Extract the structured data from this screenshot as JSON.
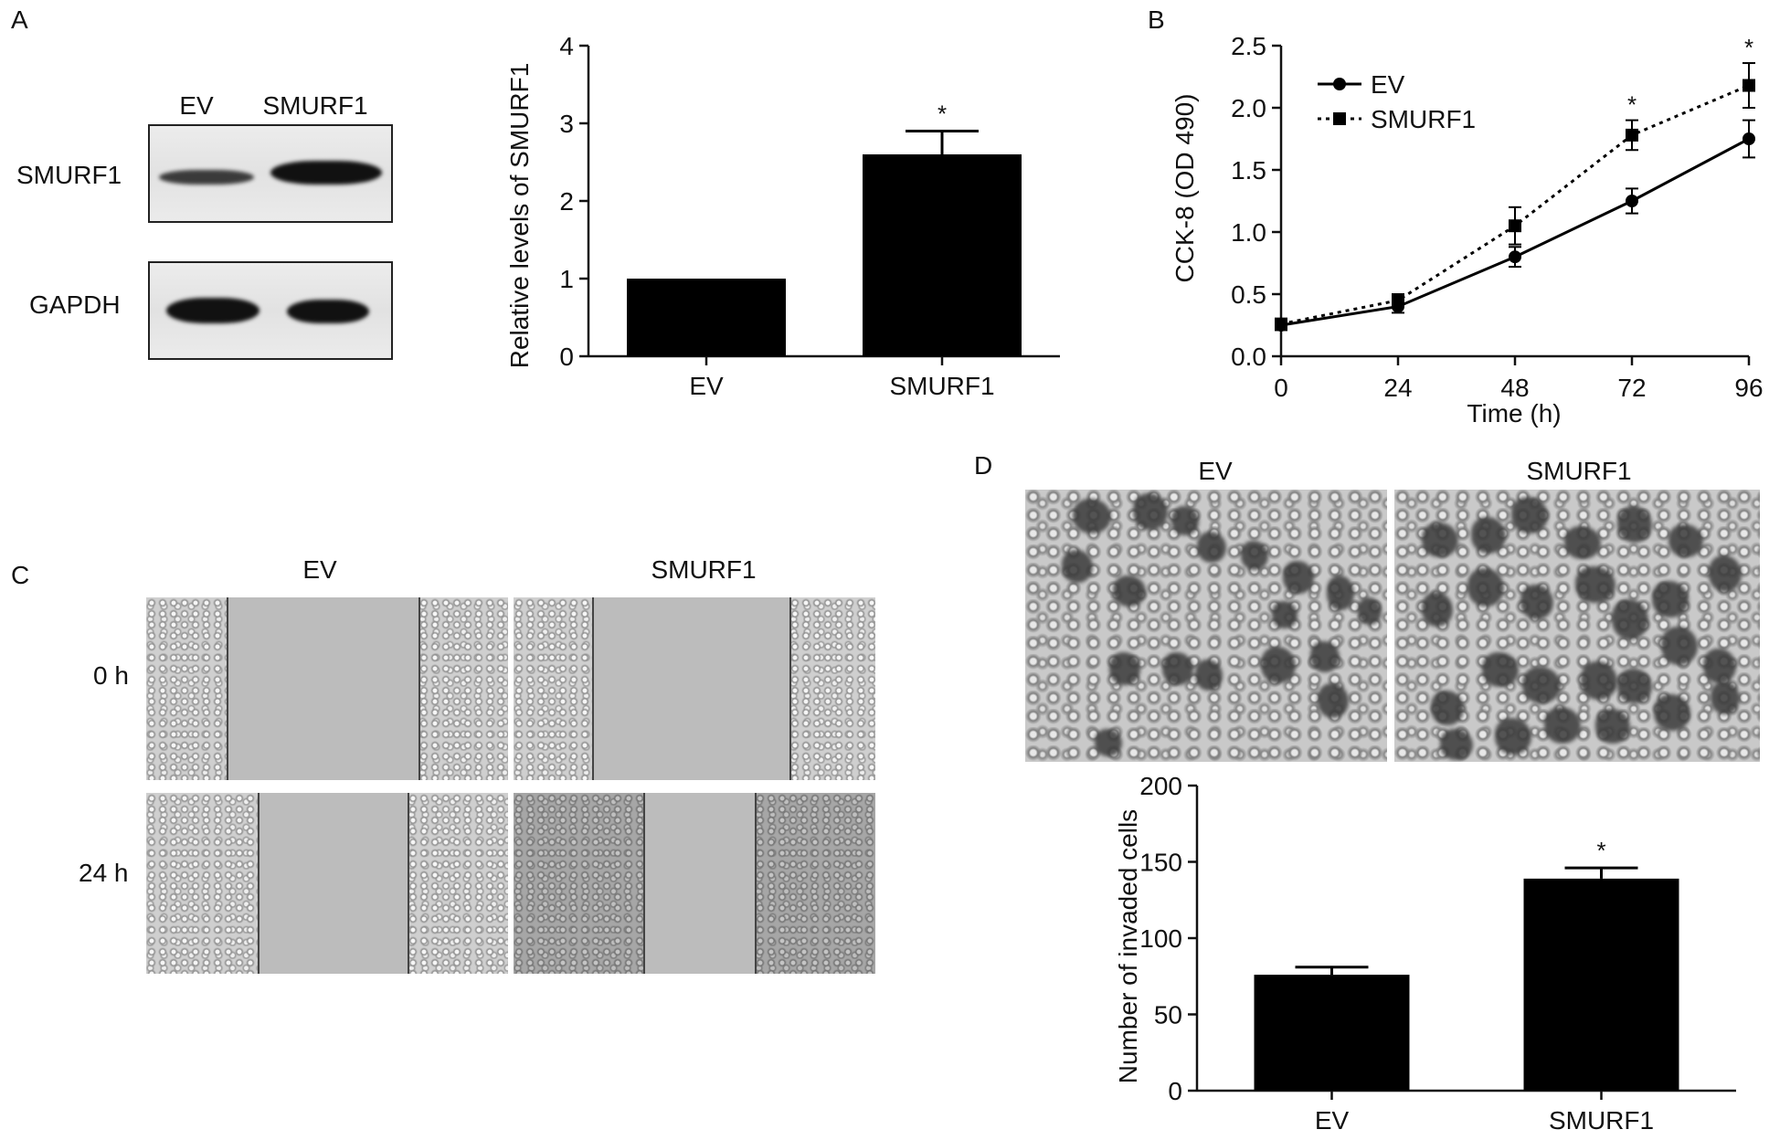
{
  "panels": {
    "A": "A",
    "B": "B",
    "C": "C",
    "D": "D"
  },
  "blot": {
    "lane_labels": [
      "EV",
      "SMURF1"
    ],
    "row_labels": [
      "SMURF1",
      "GAPDH"
    ]
  },
  "wound": {
    "col_labels": [
      "EV",
      "SMURF1"
    ],
    "row_labels": [
      "0 h",
      "24 h"
    ]
  },
  "transwell": {
    "col_labels": [
      "EV",
      "SMURF1"
    ]
  },
  "chart_data": [
    {
      "id": "A-bar",
      "type": "bar",
      "categories": [
        "EV",
        "SMURF1"
      ],
      "values": [
        1.0,
        2.6
      ],
      "errors": [
        0,
        0.3
      ],
      "significance": [
        "",
        "*"
      ],
      "xlabel": "",
      "ylabel": "Relative levels of SMURF1",
      "ylim": [
        0,
        4
      ],
      "yticks": [
        0,
        1,
        2,
        3,
        4
      ],
      "grid": false
    },
    {
      "id": "B-line",
      "type": "line",
      "x": [
        0,
        24,
        48,
        72,
        96
      ],
      "xticks": [
        0,
        24,
        48,
        72,
        96
      ],
      "xlim": [
        0,
        96
      ],
      "ylim": [
        0,
        2.5
      ],
      "yticks": [
        "0.0",
        "0.5",
        "1.0",
        "1.5",
        "2.0",
        "2.5"
      ],
      "xlabel": "Time (h)",
      "ylabel": "CCK-8 (OD 490)",
      "legend_position": "top-left",
      "grid": false,
      "series": [
        {
          "name": "EV",
          "marker": "circle",
          "line": "solid",
          "values": [
            0.25,
            0.4,
            0.8,
            1.25,
            1.75
          ],
          "errors": [
            0.04,
            0.05,
            0.08,
            0.1,
            0.15
          ]
        },
        {
          "name": "SMURF1",
          "marker": "square",
          "line": "dotted",
          "values": [
            0.26,
            0.45,
            1.05,
            1.78,
            2.18
          ],
          "errors": [
            0.04,
            0.05,
            0.15,
            0.12,
            0.18
          ]
        }
      ],
      "significance_x": [
        72,
        96
      ],
      "significance": [
        "*",
        "*"
      ]
    },
    {
      "id": "D-bar",
      "type": "bar",
      "categories": [
        "EV",
        "SMURF1"
      ],
      "values": [
        76,
        139
      ],
      "errors": [
        5,
        7
      ],
      "significance": [
        "",
        "*"
      ],
      "xlabel": "",
      "ylabel": "Number of invaded cells",
      "ylim": [
        0,
        200
      ],
      "yticks": [
        0,
        50,
        100,
        150,
        200
      ],
      "grid": false
    }
  ]
}
